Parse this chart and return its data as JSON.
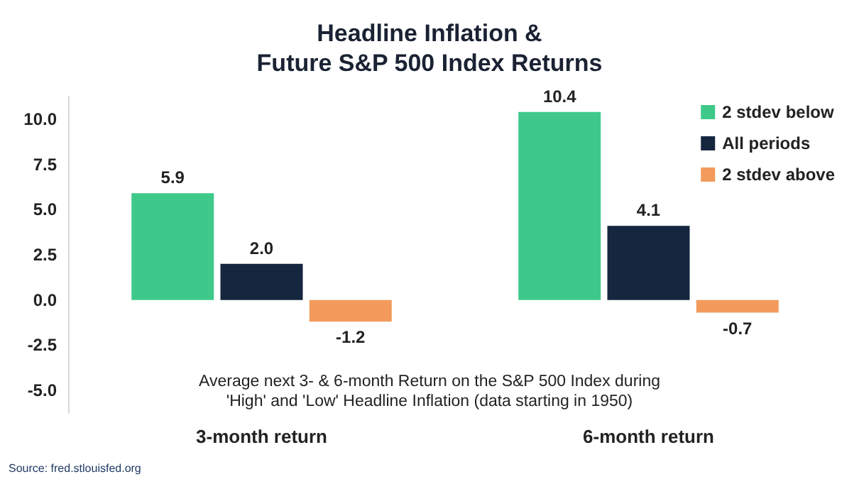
{
  "chart_data": {
    "type": "bar",
    "title": "Headline Inflation &\nFuture S&P 500 Index Returns",
    "categories": [
      "3-month return",
      "6-month return"
    ],
    "series": [
      {
        "name": "2 stdev below",
        "color": "#3ec98b",
        "values": [
          5.9,
          10.4
        ],
        "value_labels": [
          "5.9",
          "10.4"
        ]
      },
      {
        "name": "All periods",
        "color": "#15263f",
        "values": [
          2.0,
          4.1
        ],
        "value_labels": [
          "2.0",
          "4.1"
        ]
      },
      {
        "name": "2 stdev above",
        "color": "#f29b5c",
        "values": [
          -1.2,
          -0.7
        ],
        "value_labels": [
          "-1.2",
          "-0.7"
        ]
      }
    ],
    "ylim": [
      -6.25,
      11.25
    ],
    "yticks": [
      {
        "value": -5,
        "label": "-5.0"
      },
      {
        "value": -2.5,
        "label": "-2.5"
      },
      {
        "value": 0,
        "label": "0.0"
      },
      {
        "value": 2.5,
        "label": "2.5"
      },
      {
        "value": 5,
        "label": "5.0"
      },
      {
        "value": 7.5,
        "label": "7.5"
      },
      {
        "value": 10,
        "label": "10.0"
      }
    ],
    "grid": false,
    "legend": "top right",
    "annotations": [
      "Average next 3- & 6-month Return on the S&P 500 Index during\n'High' and 'Low' Headline Inflation (data starting in 1950)",
      "Source: fred.stlouisfed.org"
    ]
  }
}
